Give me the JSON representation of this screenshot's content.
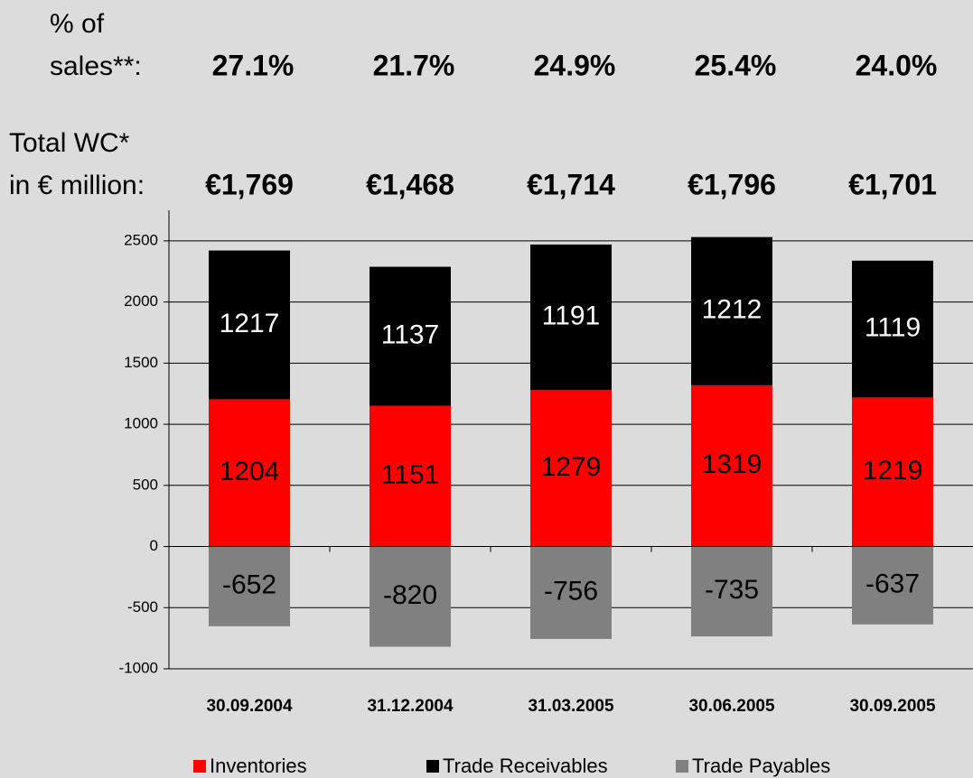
{
  "chart_data": {
    "type": "stacked_bar",
    "percent_label": [
      "% of",
      "sales**:"
    ],
    "percent_of_sales": [
      "27.1%",
      "21.7%",
      "24.9%",
      "25.4%",
      "24.0%"
    ],
    "wc_label": [
      "Total WC*",
      "in € million:"
    ],
    "total_wc": [
      "€1,769",
      "€1,468",
      "€1,714",
      "€1,796",
      "€1,701"
    ],
    "categories": [
      "30.09.2004",
      "31.12.2004",
      "31.03.2005",
      "30.06.2005",
      "30.09.2005"
    ],
    "series": [
      {
        "name": "Inventories",
        "color": "#ff0000",
        "label_color": "#000000",
        "values": [
          1204,
          1151,
          1279,
          1319,
          1219
        ]
      },
      {
        "name": "Trade Receivables",
        "color": "#000000",
        "label_color": "#ffffff",
        "values": [
          1217,
          1137,
          1191,
          1212,
          1119
        ]
      },
      {
        "name": "Trade Payables",
        "color": "#808080",
        "label_color": "#000000",
        "values": [
          -652,
          -820,
          -756,
          -735,
          -637
        ]
      }
    ],
    "ylim": [
      -1000,
      2750
    ],
    "yticks": [
      -1000,
      -500,
      0,
      500,
      1000,
      1500,
      2000,
      2500
    ],
    "grid": true,
    "legend": "bottom"
  }
}
